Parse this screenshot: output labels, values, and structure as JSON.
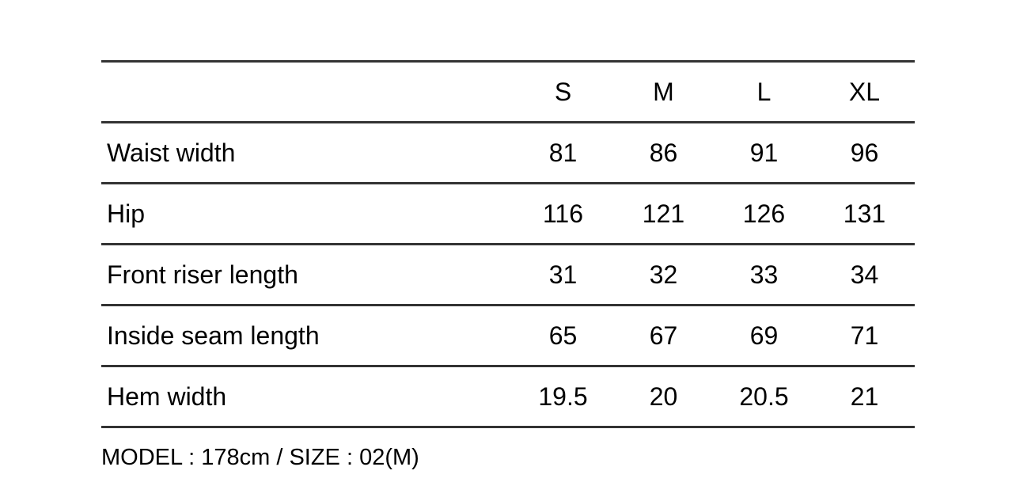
{
  "header": {
    "sizes": [
      "S",
      "M",
      "L",
      "XL"
    ]
  },
  "rows": [
    {
      "label": "Waist width",
      "values": [
        "81",
        "86",
        "91",
        "96"
      ]
    },
    {
      "label": "Hip",
      "values": [
        "116",
        "121",
        "126",
        "131"
      ]
    },
    {
      "label": "Front riser length",
      "values": [
        "31",
        "32",
        "33",
        "34"
      ]
    },
    {
      "label": "Inside seam length",
      "values": [
        "65",
        "67",
        "69",
        "71"
      ]
    },
    {
      "label": "Hem width",
      "values": [
        "19.5",
        "20",
        "20.5",
        "21"
      ]
    }
  ],
  "footer": {
    "note": "MODEL : 178cm / SIZE : 02(M)"
  }
}
